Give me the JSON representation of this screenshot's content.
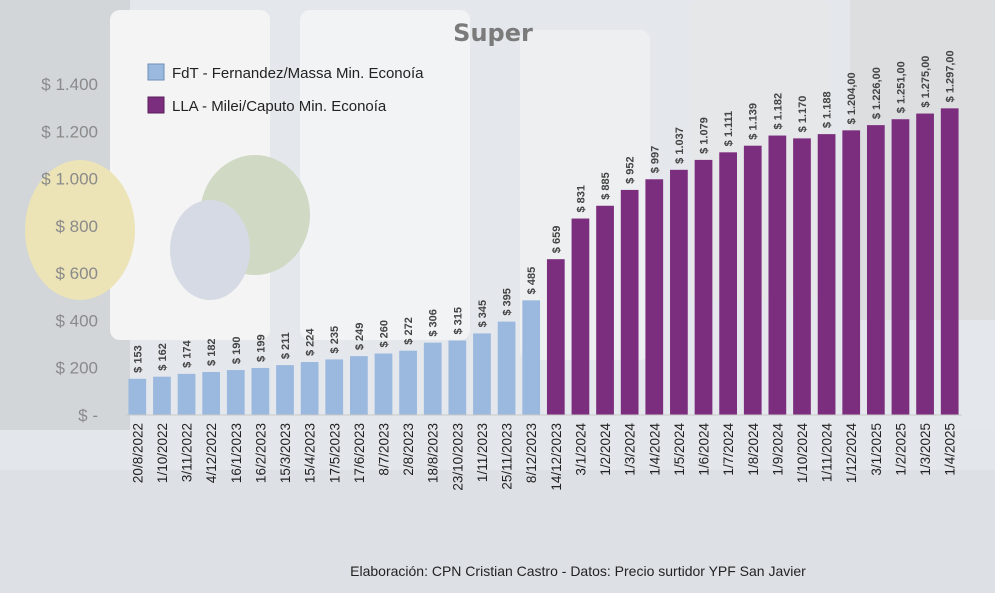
{
  "chart_data": {
    "type": "bar",
    "title": "Super",
    "categories": [
      "20/8/2022",
      "1/10/2022",
      "3/11/2022",
      "4/12/2022",
      "16/1/2023",
      "16/2/2023",
      "15/3/2023",
      "15/4/2023",
      "17/5/2023",
      "17/6/2023",
      "8/7/2023",
      "2/8/2023",
      "18/8/2023",
      "23/10/2023",
      "1/11/2023",
      "25/11/2023",
      "8/12/2023",
      "14/12/2023",
      "3/1/2024",
      "1/2/2024",
      "1/3/2024",
      "1/4/2024",
      "1/5/2024",
      "1/6/2024",
      "1/7/2024",
      "1/8/2024",
      "1/9/2024",
      "1/10/2024",
      "1/11/2024",
      "1/12/2024",
      "3/1/2025",
      "1/2/2025",
      "1/3/2025",
      "1/4/2025"
    ],
    "values": [
      153,
      162,
      174,
      182,
      190,
      199,
      211,
      224,
      235,
      249,
      260,
      272,
      306,
      315,
      345,
      395,
      485,
      659,
      831,
      885,
      952,
      997,
      1037,
      1079,
      1111,
      1139,
      1182,
      1170,
      1188,
      1204,
      1226,
      1251,
      1275,
      1297
    ],
    "value_labels": [
      "$ 153",
      "$ 162",
      "$ 174",
      "$ 182",
      "$ 190",
      "$ 199",
      "$ 211",
      "$ 224",
      "$ 235",
      "$ 249",
      "$ 260",
      "$ 272",
      "$ 306",
      "$ 315",
      "$ 345",
      "$ 395",
      "$ 485",
      "$ 659",
      "$ 831",
      "$ 885",
      "$ 952",
      "$ 997",
      "$ 1.037",
      "$ 1.079",
      "$ 1.111",
      "$ 1.139",
      "$ 1.182",
      "$ 1.170",
      "$ 1.188",
      "$ 1.204,00",
      "$ 1.226,00",
      "$ 1.251,00",
      "$ 1.275,00",
      "$ 1.297,00"
    ],
    "series": [
      {
        "name": "FdT - Fernandez/Massa Min. Econoía",
        "color": "#9bb8de",
        "count": 17
      },
      {
        "name": "LLA - Milei/Caputo Min. Econoía",
        "color": "#7b2d7e",
        "count": 17
      }
    ],
    "ylim": [
      0,
      1400
    ],
    "yticks": [
      0,
      200,
      400,
      600,
      800,
      1000,
      1200,
      1400
    ],
    "ytick_labels": [
      "$ -",
      "$ 200",
      "$ 400",
      "$ 600",
      "$ 800",
      "$ 1.000",
      "$ 1.200",
      "$ 1.400"
    ],
    "xlabel": "",
    "ylabel": "",
    "legend_position": "top-left",
    "grid": false
  },
  "credit": "Elaboración: CPN Cristian Castro - Datos: Precio surtidor YPF San Javier"
}
